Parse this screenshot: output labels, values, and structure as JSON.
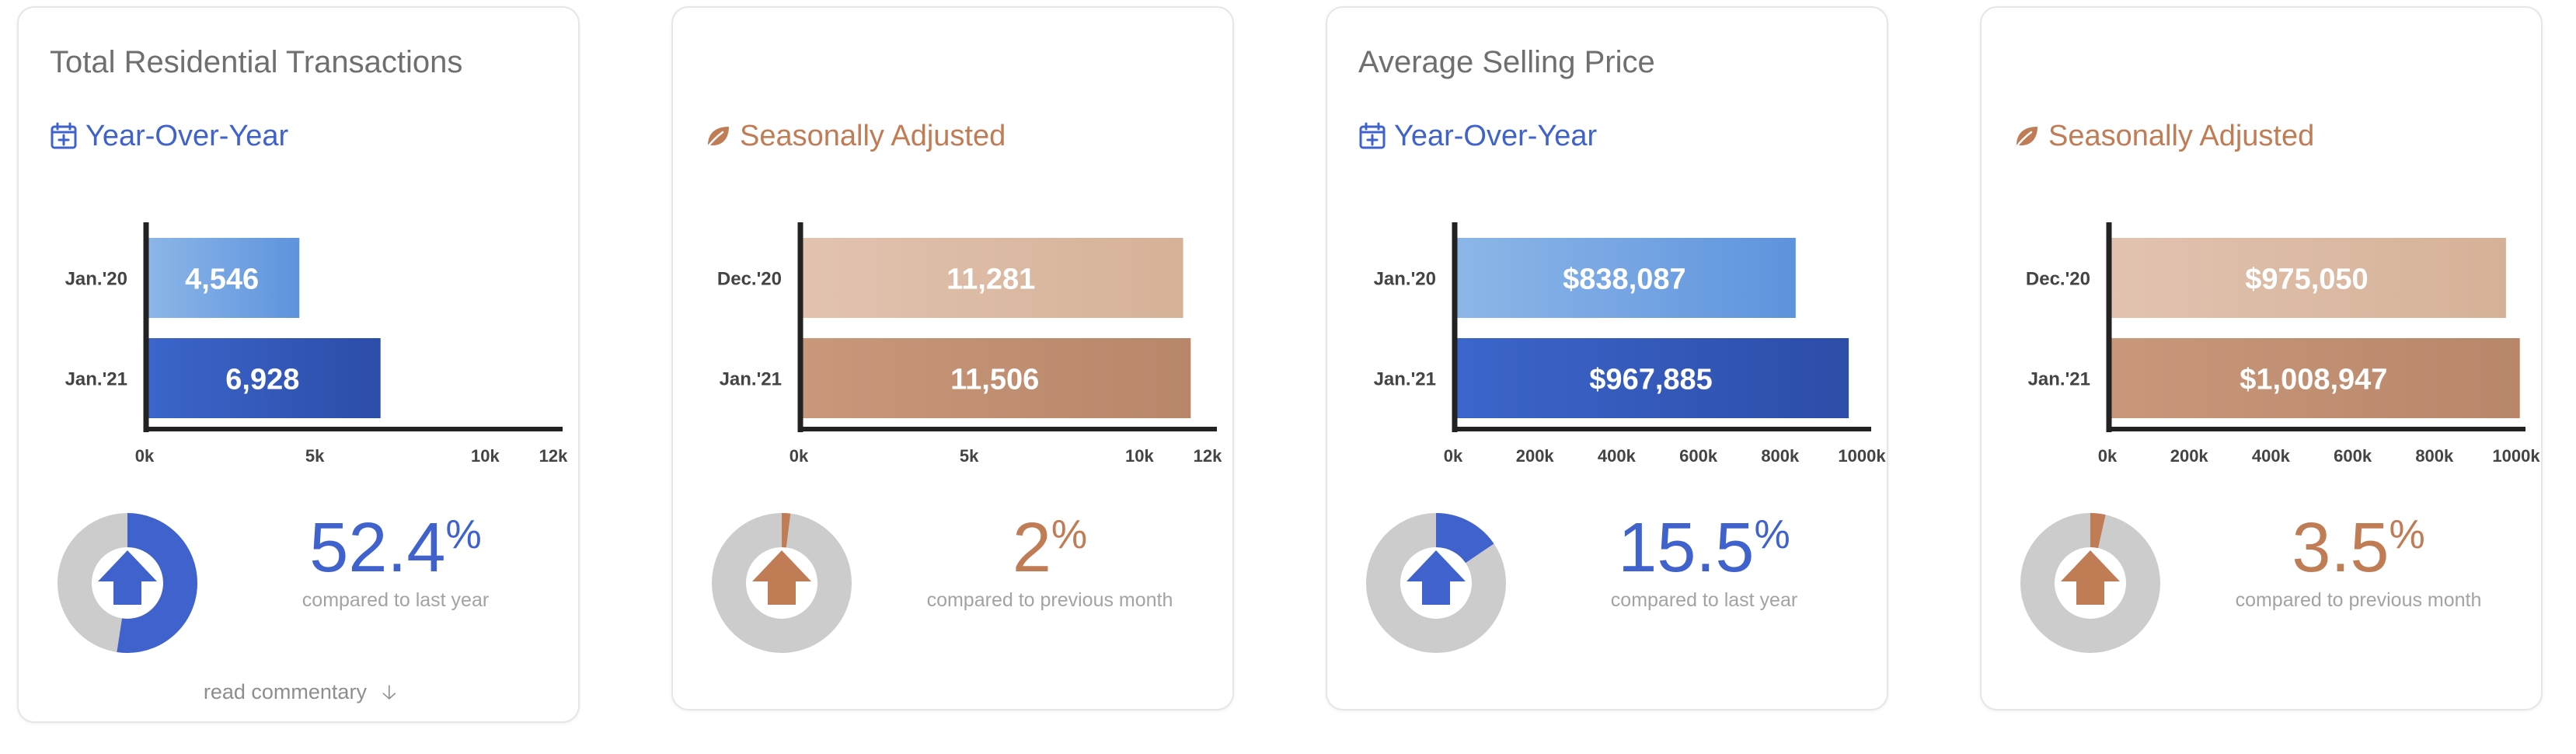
{
  "cards": [
    {
      "title": "Total Residential Transactions",
      "subtitle": "Year-Over-Year",
      "subtitle_icon": "calendar-plus-icon",
      "accent": "#3f62cc",
      "percent_value": "52.4",
      "percent_sign": "%",
      "percent_caption": "compared to last year",
      "donut_fraction": 0.524,
      "donut_icon": "arrow-up-icon",
      "commentary_link": "read commentary",
      "commentary_icon": "arrow-down-icon",
      "chart_data": {
        "type": "bar",
        "orientation": "horizontal",
        "categories": [
          "Jan.'20",
          "Jan.'21"
        ],
        "values": [
          4546,
          6928
        ],
        "value_labels": [
          "4,546",
          "6,928"
        ],
        "bar_colors": [
          [
            "#8db7e8",
            "#5e93dd"
          ],
          [
            "#3c66cc",
            "#2c4da8"
          ]
        ],
        "xlim": [
          0,
          12000
        ],
        "x_ticks": [
          0,
          5000,
          10000,
          12000
        ],
        "x_tick_labels": [
          "0k",
          "5k",
          "10k",
          "12k"
        ]
      }
    },
    {
      "title": "",
      "subtitle": "Seasonally Adjusted",
      "subtitle_icon": "leaf-icon",
      "accent": "#c07c55",
      "percent_value": "2",
      "percent_sign": "%",
      "percent_caption": "compared to previous month",
      "donut_fraction": 0.02,
      "donut_icon": "arrow-up-icon",
      "chart_data": {
        "type": "bar",
        "orientation": "horizontal",
        "categories": [
          "Dec.'20",
          "Jan.'21"
        ],
        "values": [
          11281,
          11506
        ],
        "value_labels": [
          "11,281",
          "11,506"
        ],
        "bar_colors": [
          [
            "#e2c3b0",
            "#d5b197"
          ],
          [
            "#c9977a",
            "#b8876a"
          ]
        ],
        "xlim": [
          0,
          12000
        ],
        "x_ticks": [
          0,
          5000,
          10000,
          12000
        ],
        "x_tick_labels": [
          "0k",
          "5k",
          "10k",
          "12k"
        ]
      }
    },
    {
      "title": "Average Selling Price",
      "subtitle": "Year-Over-Year",
      "subtitle_icon": "calendar-plus-icon",
      "accent": "#3f62cc",
      "percent_value": "15.5",
      "percent_sign": "%",
      "percent_caption": "compared to last year",
      "donut_fraction": 0.155,
      "donut_icon": "arrow-up-icon",
      "chart_data": {
        "type": "bar",
        "orientation": "horizontal",
        "categories": [
          "Jan.'20",
          "Jan.'21"
        ],
        "values": [
          838087,
          967885
        ],
        "value_labels": [
          "$838,087",
          "$967,885"
        ],
        "bar_colors": [
          [
            "#8db7e8",
            "#5e93dd"
          ],
          [
            "#3c66cc",
            "#2c4da8"
          ]
        ],
        "xlim": [
          0,
          1000000
        ],
        "x_ticks": [
          0,
          200000,
          400000,
          600000,
          800000,
          1000000
        ],
        "x_tick_labels": [
          "0k",
          "200k",
          "400k",
          "600k",
          "800k",
          "1000k"
        ]
      }
    },
    {
      "title": "",
      "subtitle": "Seasonally Adjusted",
      "subtitle_icon": "leaf-icon",
      "accent": "#c07c55",
      "percent_value": "3.5",
      "percent_sign": "%",
      "percent_caption": "compared to previous month",
      "donut_fraction": 0.035,
      "donut_icon": "arrow-up-icon",
      "chart_data": {
        "type": "bar",
        "orientation": "horizontal",
        "categories": [
          "Dec.'20",
          "Jan.'21"
        ],
        "values": [
          975050,
          1008947
        ],
        "value_labels": [
          "$975,050",
          "$1,008,947"
        ],
        "bar_colors": [
          [
            "#e2c3b0",
            "#d5b197"
          ],
          [
            "#c9977a",
            "#b8876a"
          ]
        ],
        "xlim": [
          0,
          1000000
        ],
        "x_ticks": [
          0,
          200000,
          400000,
          600000,
          800000,
          1000000
        ],
        "x_tick_labels": [
          "0k",
          "200k",
          "400k",
          "600k",
          "800k",
          "1000k"
        ]
      }
    }
  ],
  "donut_track_color": "#cccccc"
}
